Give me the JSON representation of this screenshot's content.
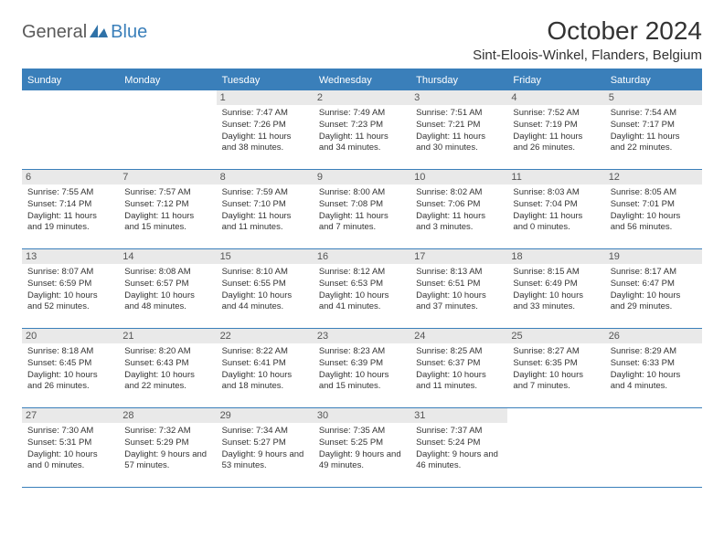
{
  "logo": {
    "text1": "General",
    "text2": "Blue"
  },
  "title": "October 2024",
  "location": "Sint-Eloois-Winkel, Flanders, Belgium",
  "colors": {
    "accent": "#3a7fba",
    "header_bg": "#3a7fba",
    "daynum_bg": "#e9e9e9",
    "text": "#333333"
  },
  "weekdays": [
    "Sunday",
    "Monday",
    "Tuesday",
    "Wednesday",
    "Thursday",
    "Friday",
    "Saturday"
  ],
  "weeks": [
    [
      {
        "n": "",
        "sr": "",
        "ss": "",
        "dl": ""
      },
      {
        "n": "",
        "sr": "",
        "ss": "",
        "dl": ""
      },
      {
        "n": "1",
        "sr": "Sunrise: 7:47 AM",
        "ss": "Sunset: 7:26 PM",
        "dl": "Daylight: 11 hours and 38 minutes."
      },
      {
        "n": "2",
        "sr": "Sunrise: 7:49 AM",
        "ss": "Sunset: 7:23 PM",
        "dl": "Daylight: 11 hours and 34 minutes."
      },
      {
        "n": "3",
        "sr": "Sunrise: 7:51 AM",
        "ss": "Sunset: 7:21 PM",
        "dl": "Daylight: 11 hours and 30 minutes."
      },
      {
        "n": "4",
        "sr": "Sunrise: 7:52 AM",
        "ss": "Sunset: 7:19 PM",
        "dl": "Daylight: 11 hours and 26 minutes."
      },
      {
        "n": "5",
        "sr": "Sunrise: 7:54 AM",
        "ss": "Sunset: 7:17 PM",
        "dl": "Daylight: 11 hours and 22 minutes."
      }
    ],
    [
      {
        "n": "6",
        "sr": "Sunrise: 7:55 AM",
        "ss": "Sunset: 7:14 PM",
        "dl": "Daylight: 11 hours and 19 minutes."
      },
      {
        "n": "7",
        "sr": "Sunrise: 7:57 AM",
        "ss": "Sunset: 7:12 PM",
        "dl": "Daylight: 11 hours and 15 minutes."
      },
      {
        "n": "8",
        "sr": "Sunrise: 7:59 AM",
        "ss": "Sunset: 7:10 PM",
        "dl": "Daylight: 11 hours and 11 minutes."
      },
      {
        "n": "9",
        "sr": "Sunrise: 8:00 AM",
        "ss": "Sunset: 7:08 PM",
        "dl": "Daylight: 11 hours and 7 minutes."
      },
      {
        "n": "10",
        "sr": "Sunrise: 8:02 AM",
        "ss": "Sunset: 7:06 PM",
        "dl": "Daylight: 11 hours and 3 minutes."
      },
      {
        "n": "11",
        "sr": "Sunrise: 8:03 AM",
        "ss": "Sunset: 7:04 PM",
        "dl": "Daylight: 11 hours and 0 minutes."
      },
      {
        "n": "12",
        "sr": "Sunrise: 8:05 AM",
        "ss": "Sunset: 7:01 PM",
        "dl": "Daylight: 10 hours and 56 minutes."
      }
    ],
    [
      {
        "n": "13",
        "sr": "Sunrise: 8:07 AM",
        "ss": "Sunset: 6:59 PM",
        "dl": "Daylight: 10 hours and 52 minutes."
      },
      {
        "n": "14",
        "sr": "Sunrise: 8:08 AM",
        "ss": "Sunset: 6:57 PM",
        "dl": "Daylight: 10 hours and 48 minutes."
      },
      {
        "n": "15",
        "sr": "Sunrise: 8:10 AM",
        "ss": "Sunset: 6:55 PM",
        "dl": "Daylight: 10 hours and 44 minutes."
      },
      {
        "n": "16",
        "sr": "Sunrise: 8:12 AM",
        "ss": "Sunset: 6:53 PM",
        "dl": "Daylight: 10 hours and 41 minutes."
      },
      {
        "n": "17",
        "sr": "Sunrise: 8:13 AM",
        "ss": "Sunset: 6:51 PM",
        "dl": "Daylight: 10 hours and 37 minutes."
      },
      {
        "n": "18",
        "sr": "Sunrise: 8:15 AM",
        "ss": "Sunset: 6:49 PM",
        "dl": "Daylight: 10 hours and 33 minutes."
      },
      {
        "n": "19",
        "sr": "Sunrise: 8:17 AM",
        "ss": "Sunset: 6:47 PM",
        "dl": "Daylight: 10 hours and 29 minutes."
      }
    ],
    [
      {
        "n": "20",
        "sr": "Sunrise: 8:18 AM",
        "ss": "Sunset: 6:45 PM",
        "dl": "Daylight: 10 hours and 26 minutes."
      },
      {
        "n": "21",
        "sr": "Sunrise: 8:20 AM",
        "ss": "Sunset: 6:43 PM",
        "dl": "Daylight: 10 hours and 22 minutes."
      },
      {
        "n": "22",
        "sr": "Sunrise: 8:22 AM",
        "ss": "Sunset: 6:41 PM",
        "dl": "Daylight: 10 hours and 18 minutes."
      },
      {
        "n": "23",
        "sr": "Sunrise: 8:23 AM",
        "ss": "Sunset: 6:39 PM",
        "dl": "Daylight: 10 hours and 15 minutes."
      },
      {
        "n": "24",
        "sr": "Sunrise: 8:25 AM",
        "ss": "Sunset: 6:37 PM",
        "dl": "Daylight: 10 hours and 11 minutes."
      },
      {
        "n": "25",
        "sr": "Sunrise: 8:27 AM",
        "ss": "Sunset: 6:35 PM",
        "dl": "Daylight: 10 hours and 7 minutes."
      },
      {
        "n": "26",
        "sr": "Sunrise: 8:29 AM",
        "ss": "Sunset: 6:33 PM",
        "dl": "Daylight: 10 hours and 4 minutes."
      }
    ],
    [
      {
        "n": "27",
        "sr": "Sunrise: 7:30 AM",
        "ss": "Sunset: 5:31 PM",
        "dl": "Daylight: 10 hours and 0 minutes."
      },
      {
        "n": "28",
        "sr": "Sunrise: 7:32 AM",
        "ss": "Sunset: 5:29 PM",
        "dl": "Daylight: 9 hours and 57 minutes."
      },
      {
        "n": "29",
        "sr": "Sunrise: 7:34 AM",
        "ss": "Sunset: 5:27 PM",
        "dl": "Daylight: 9 hours and 53 minutes."
      },
      {
        "n": "30",
        "sr": "Sunrise: 7:35 AM",
        "ss": "Sunset: 5:25 PM",
        "dl": "Daylight: 9 hours and 49 minutes."
      },
      {
        "n": "31",
        "sr": "Sunrise: 7:37 AM",
        "ss": "Sunset: 5:24 PM",
        "dl": "Daylight: 9 hours and 46 minutes."
      },
      {
        "n": "",
        "sr": "",
        "ss": "",
        "dl": ""
      },
      {
        "n": "",
        "sr": "",
        "ss": "",
        "dl": ""
      }
    ]
  ]
}
